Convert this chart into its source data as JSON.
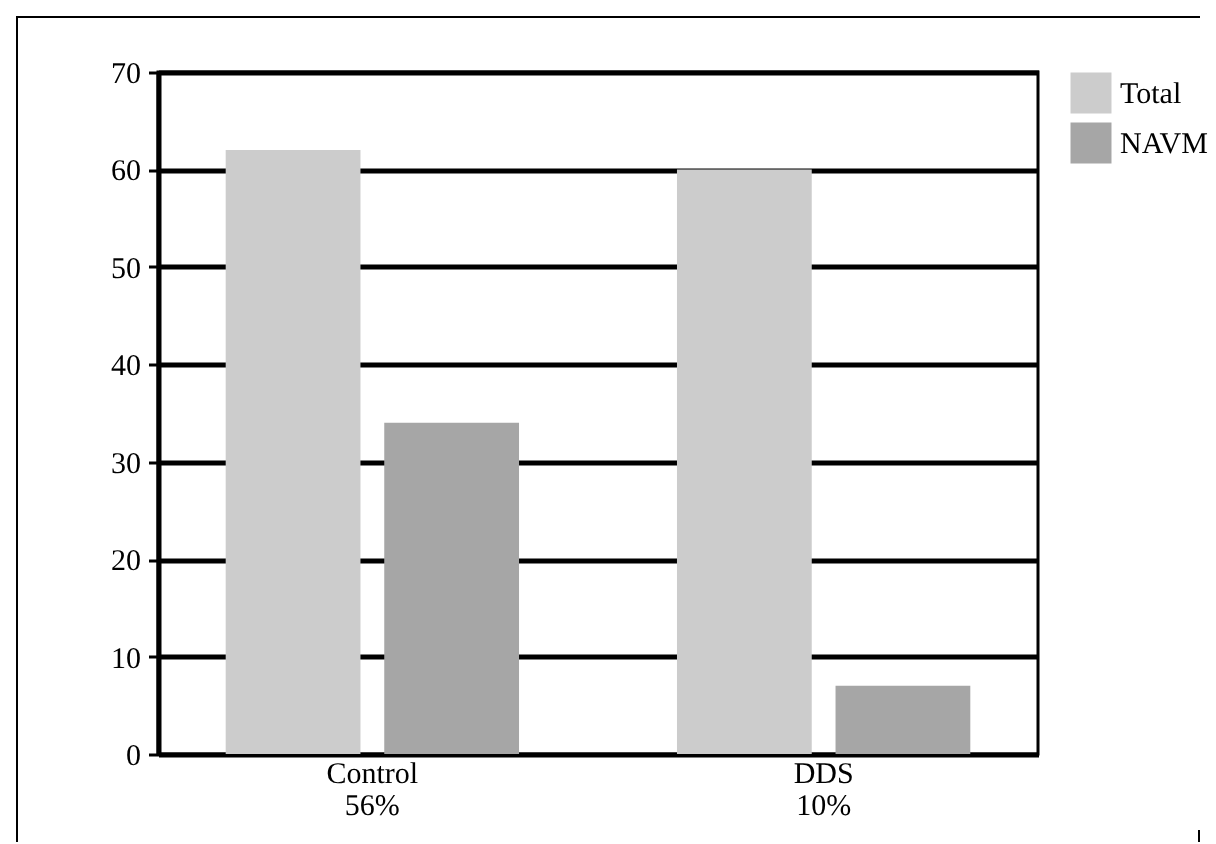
{
  "chart_data": {
    "type": "bar",
    "categories": [
      "Control\n56%",
      "DDS\n10%"
    ],
    "series": [
      {
        "name": "Total",
        "color": "#cccccc",
        "values": [
          62,
          60
        ]
      },
      {
        "name": "NAVM",
        "color": "#a6a6a6",
        "values": [
          34,
          7
        ]
      }
    ],
    "ylim": [
      0,
      70
    ],
    "yticks": [
      0,
      10,
      20,
      30,
      40,
      50,
      60,
      70
    ],
    "grid": "y",
    "legend": "right"
  }
}
